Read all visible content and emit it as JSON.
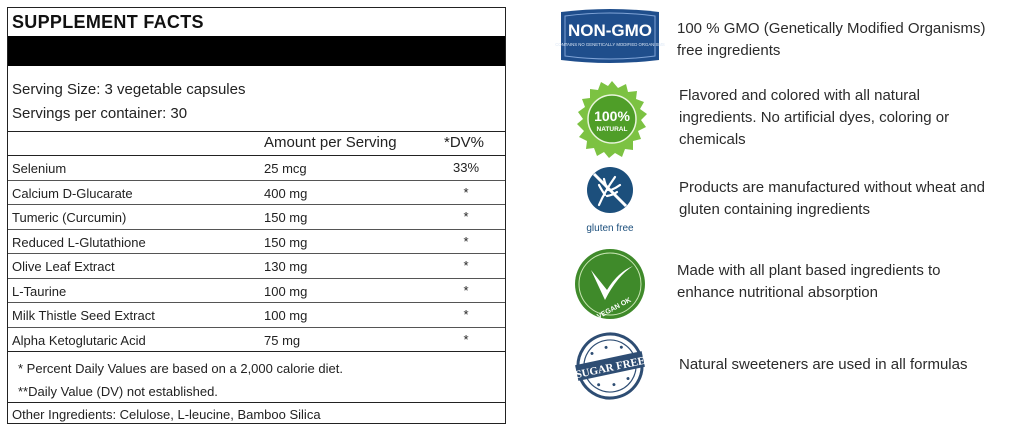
{
  "facts": {
    "title": "SUPPLEMENT FACTS",
    "serving_size": "Serving Size: 3 vegetable capsules",
    "servings_per_container": "Servings per container:  30",
    "col_amount": "Amount per Serving",
    "col_dv": "*DV%",
    "rows": [
      {
        "name": "Selenium",
        "amount": "25 mcg",
        "dv": "33%"
      },
      {
        "name": "Calcium D-Glucarate",
        "amount": "400 mg",
        "dv": "*"
      },
      {
        "name": "Tumeric (Curcumin)",
        "amount": "150 mg",
        "dv": "*"
      },
      {
        "name": "Reduced L-Glutathione",
        "amount": "150 mg",
        "dv": "*"
      },
      {
        "name": "Olive Leaf Extract",
        "amount": "130 mg",
        "dv": "*"
      },
      {
        "name": "L-Taurine",
        "amount": "100 mg",
        "dv": "*"
      },
      {
        "name": "Milk Thistle Seed Extract",
        "amount": "100 mg",
        "dv": "*"
      },
      {
        "name": "Alpha Ketoglutaric Acid",
        "amount": "75 mg",
        "dv": "*"
      }
    ],
    "note1": "* Percent Daily Values are based on a 2,000 calorie diet.",
    "note2": "**Daily Value (DV) not established.",
    "other_ingredients": "Other Ingredients:  Celulose, L-leucine, Bamboo Silica"
  },
  "features": [
    {
      "icon": "non-gmo-badge",
      "badge_text": "NON-GMO",
      "badge_subtext": "CONTAINS NO GENETICALLY MODIFIED ORGANISMS",
      "line1": "100 % GMO (Genetically Modified Organisms)",
      "line2": "free ingredients",
      "line3": ""
    },
    {
      "icon": "natural-seal",
      "badge_text": "100%",
      "badge_subtext": "NATURAL",
      "line1": "Flavored and colored with all natural",
      "line2": "ingredients.  No artificial dyes, coloring or",
      "line3": "chemicals"
    },
    {
      "icon": "gluten-free-badge",
      "badge_text": "gluten free",
      "badge_subtext": "",
      "line1": "Products are manufactured without wheat and",
      "line2": "gluten containing ingredients",
      "line3": ""
    },
    {
      "icon": "vegan-badge",
      "badge_text": "VEGAN OK",
      "badge_subtext": "",
      "line1": "Made with all plant based ingredients to",
      "line2": "enhance nutritional absorption",
      "line3": ""
    },
    {
      "icon": "sugar-free-stamp",
      "badge_text": "SUGAR FREE",
      "badge_subtext": "",
      "line1": "Natural sweeteners are used in all formulas",
      "line2": "",
      "line3": ""
    }
  ],
  "colors": {
    "nongmo_blue": "#1f4e8c",
    "natural_green": "#5aa82a",
    "gluten_blue": "#1c4f7c",
    "vegan_green": "#3f8a2a",
    "sugar_blue": "#2e4d73"
  }
}
